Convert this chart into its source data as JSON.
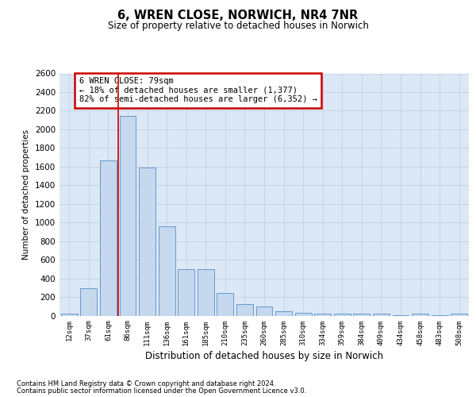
{
  "title": "6, WREN CLOSE, NORWICH, NR4 7NR",
  "subtitle": "Size of property relative to detached houses in Norwich",
  "xlabel": "Distribution of detached houses by size in Norwich",
  "ylabel": "Number of detached properties",
  "categories": [
    "12sqm",
    "37sqm",
    "61sqm",
    "86sqm",
    "111sqm",
    "136sqm",
    "161sqm",
    "185sqm",
    "210sqm",
    "235sqm",
    "260sqm",
    "285sqm",
    "310sqm",
    "334sqm",
    "359sqm",
    "384sqm",
    "409sqm",
    "434sqm",
    "458sqm",
    "483sqm",
    "508sqm"
  ],
  "values": [
    25,
    295,
    1670,
    2140,
    1590,
    960,
    500,
    500,
    245,
    120,
    100,
    45,
    30,
    20,
    20,
    25,
    20,
    5,
    25,
    5,
    25
  ],
  "bar_color": "#c5d8ee",
  "bar_edge_color": "#6699cc",
  "redline_x": 2.5,
  "annotation_text": "6 WREN CLOSE: 79sqm\n← 18% of detached houses are smaller (1,377)\n82% of semi-detached houses are larger (6,352) →",
  "annotation_box_facecolor": "#ffffff",
  "annotation_box_edgecolor": "#cc0000",
  "ylim_max": 2600,
  "yticks": [
    0,
    200,
    400,
    600,
    800,
    1000,
    1200,
    1400,
    1600,
    1800,
    2000,
    2200,
    2400,
    2600
  ],
  "grid_color": "#c5d5e5",
  "plot_bg_color": "#dce8f5",
  "footer_line1": "Contains HM Land Registry data © Crown copyright and database right 2024.",
  "footer_line2": "Contains public sector information licensed under the Open Government Licence v3.0."
}
